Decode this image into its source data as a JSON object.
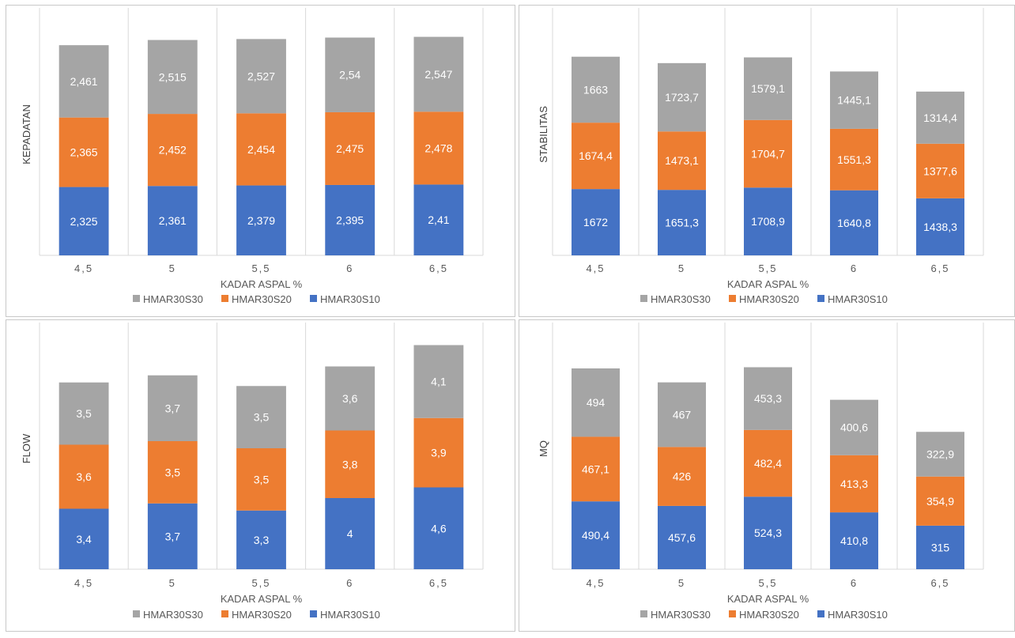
{
  "colors": {
    "s30": "#a5a5a5",
    "s20": "#ed7d31",
    "s10": "#4472c4",
    "grid": "#d9d9d9"
  },
  "legend": [
    "HMAR30S30",
    "HMAR30S20",
    "HMAR30S10"
  ],
  "chart_data": [
    {
      "type": "bar",
      "stacked": true,
      "categories": [
        "4,5",
        "5",
        "5,5",
        "6",
        "6,5"
      ],
      "xlabel": "KADAR ASPAL %",
      "ylabel": "KEPADATAN",
      "series": [
        {
          "name": "HMAR30S10",
          "values": [
            2.325,
            2.361,
            2.379,
            2.395,
            2.41
          ],
          "labels": [
            "2,325",
            "2,361",
            "2,379",
            "2,395",
            "2,41"
          ]
        },
        {
          "name": "HMAR30S20",
          "values": [
            2.365,
            2.452,
            2.454,
            2.475,
            2.478
          ],
          "labels": [
            "2,365",
            "2,452",
            "2,454",
            "2,475",
            "2,478"
          ]
        },
        {
          "name": "HMAR30S30",
          "values": [
            2.461,
            2.515,
            2.527,
            2.54,
            2.547
          ],
          "labels": [
            "2,461",
            "2,515",
            "2,527",
            "2,54",
            "2,547"
          ]
        }
      ],
      "ylim": [
        0,
        8.5
      ],
      "grid": "vertical",
      "legend_position": "bottom"
    },
    {
      "type": "bar",
      "stacked": true,
      "categories": [
        "4,5",
        "5",
        "5,5",
        "6",
        "6,5"
      ],
      "xlabel": "KADAR ASPAL %",
      "ylabel": "STABILITAS",
      "series": [
        {
          "name": "HMAR30S10",
          "values": [
            1672,
            1651.3,
            1708.9,
            1640.8,
            1438.3
          ],
          "labels": [
            "1672",
            "1651,3",
            "1708,9",
            "1640,8",
            "1438,3"
          ]
        },
        {
          "name": "HMAR30S20",
          "values": [
            1674.4,
            1473.1,
            1704.7,
            1551.3,
            1377.6
          ],
          "labels": [
            "1674,4",
            "1473,1",
            "1704,7",
            "1551,3",
            "1377,6"
          ]
        },
        {
          "name": "HMAR30S30",
          "values": [
            1663,
            1723.7,
            1579.1,
            1445.1,
            1314.4
          ],
          "labels": [
            "1663",
            "1723,7",
            "1579,1",
            "1445,1",
            "1314,4"
          ]
        }
      ],
      "ylim": [
        0,
        6300
      ],
      "grid": "vertical",
      "legend_position": "bottom"
    },
    {
      "type": "bar",
      "stacked": true,
      "categories": [
        "4,5",
        "5",
        "5,5",
        "6",
        "6,5"
      ],
      "xlabel": "KADAR ASPAL %",
      "ylabel": "FLOW",
      "series": [
        {
          "name": "HMAR30S10",
          "values": [
            3.4,
            3.7,
            3.3,
            4,
            4.6
          ],
          "labels": [
            "3,4",
            "3,7",
            "3,3",
            "4",
            "4,6"
          ]
        },
        {
          "name": "HMAR30S20",
          "values": [
            3.6,
            3.5,
            3.5,
            3.8,
            3.9
          ],
          "labels": [
            "3,6",
            "3,5",
            "3,5",
            "3,8",
            "3,9"
          ]
        },
        {
          "name": "HMAR30S30",
          "values": [
            3.5,
            3.7,
            3.5,
            3.6,
            4.1
          ],
          "labels": [
            "3,5",
            "3,7",
            "3,5",
            "3,6",
            "4,1"
          ]
        }
      ],
      "ylim": [
        0,
        14
      ],
      "grid": "vertical",
      "legend_position": "bottom"
    },
    {
      "type": "bar",
      "stacked": true,
      "categories": [
        "4,5",
        "5",
        "5,5",
        "6",
        "6,5"
      ],
      "xlabel": "KADAR ASPAL %",
      "ylabel": "MQ",
      "series": [
        {
          "name": "HMAR30S10",
          "values": [
            490.4,
            457.6,
            524.3,
            410.8,
            315
          ],
          "labels": [
            "490,4",
            "457,6",
            "524,3",
            "410,8",
            "315"
          ]
        },
        {
          "name": "HMAR30S20",
          "values": [
            467.1,
            426,
            482.4,
            413.3,
            354.9
          ],
          "labels": [
            "467,1",
            "426",
            "482,4",
            "413,3",
            "354,9"
          ]
        },
        {
          "name": "HMAR30S30",
          "values": [
            494,
            467,
            453.3,
            400.6,
            322.9
          ],
          "labels": [
            "494",
            "467",
            "453,3",
            "400,6",
            "322,9"
          ]
        }
      ],
      "ylim": [
        0,
        1800
      ],
      "grid": "vertical",
      "legend_position": "bottom"
    }
  ]
}
